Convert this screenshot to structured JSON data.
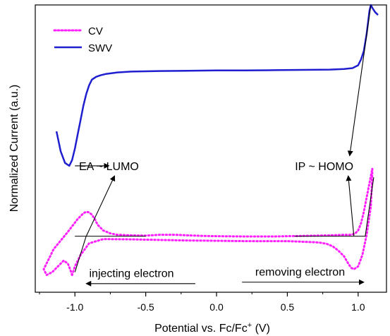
{
  "chart_data": {
    "type": "line",
    "xlabel": "Potential vs. Fc/Fc",
    "xlabel_sup": "+",
    "xlabel_unit": " (V)",
    "ylabel": "Normalized Current (a.u.)",
    "xlim": [
      -1.28,
      1.2
    ],
    "ylim": [
      0,
      1
    ],
    "x_ticks": [
      -1.0,
      -0.5,
      0.0,
      0.5,
      1.0
    ],
    "x_tick_labels": [
      "-1.0",
      "-0.5",
      "0.0",
      "0.5",
      "1.0"
    ],
    "y_ticks_shown": false,
    "legend": {
      "position": "top-left",
      "entries": [
        "CV",
        "SWV"
      ]
    },
    "colors": {
      "CV": "#ff22ff",
      "SWV": "#1f1fd0",
      "axis": "#000000"
    },
    "series": [
      {
        "name": "SWV",
        "style": "solid",
        "x": [
          -1.13,
          -1.1,
          -1.07,
          -1.04,
          -1.02,
          -1.0,
          -0.98,
          -0.96,
          -0.94,
          -0.92,
          -0.9,
          -0.88,
          -0.85,
          -0.82,
          -0.78,
          -0.7,
          -0.6,
          -0.4,
          -0.2,
          0.0,
          0.2,
          0.4,
          0.6,
          0.8,
          0.9,
          0.96,
          1.0,
          1.02,
          1.04,
          1.05,
          1.06,
          1.07,
          1.08,
          1.09,
          1.1,
          1.12,
          1.14
        ],
        "y": [
          0.56,
          0.49,
          0.45,
          0.44,
          0.46,
          0.5,
          0.55,
          0.6,
          0.65,
          0.69,
          0.72,
          0.74,
          0.75,
          0.755,
          0.76,
          0.765,
          0.768,
          0.77,
          0.771,
          0.772,
          0.772,
          0.773,
          0.774,
          0.775,
          0.777,
          0.78,
          0.79,
          0.81,
          0.84,
          0.87,
          0.9,
          0.94,
          0.98,
          1.0,
          0.99,
          0.975,
          0.965
        ]
      },
      {
        "name": "CV",
        "style": "dotted",
        "x": [
          -1.02,
          -1.03,
          -1.05,
          -1.08,
          -1.12,
          -1.16,
          -1.2,
          -1.22,
          -1.15,
          -1.05,
          -0.98,
          -0.94,
          -0.92,
          -0.9,
          -0.88,
          -0.86,
          -0.84,
          -0.8,
          -0.75,
          -0.7,
          -0.6,
          -0.5,
          -0.4,
          -0.3,
          -0.2,
          -0.1,
          0.0,
          0.2,
          0.4,
          0.6,
          0.8,
          0.9,
          0.95,
          0.98,
          1.0,
          1.02,
          1.04,
          1.06,
          1.08,
          1.1,
          1.1,
          1.09,
          1.06,
          1.03,
          1.0,
          0.97,
          0.95,
          0.93,
          0.9,
          0.86,
          0.82,
          0.78,
          0.74,
          0.7,
          0.6,
          0.5,
          0.4,
          0.2,
          0.0,
          -0.2,
          -0.4,
          -0.6,
          -0.8,
          -0.9,
          -0.96,
          -1.0,
          -1.02
        ],
        "y": [
          0.06,
          0.075,
          0.1,
          0.11,
          0.09,
          0.07,
          0.06,
          0.08,
          0.15,
          0.21,
          0.255,
          0.275,
          0.28,
          0.278,
          0.27,
          0.255,
          0.235,
          0.215,
          0.205,
          0.2,
          0.198,
          0.197,
          0.2,
          0.2,
          0.198,
          0.196,
          0.195,
          0.194,
          0.194,
          0.196,
          0.198,
          0.2,
          0.2,
          0.205,
          0.215,
          0.24,
          0.28,
          0.33,
          0.38,
          0.43,
          0.41,
          0.3,
          0.2,
          0.13,
          0.09,
          0.08,
          0.085,
          0.1,
          0.125,
          0.145,
          0.16,
          0.168,
          0.172,
          0.174,
          0.176,
          0.178,
          0.178,
          0.178,
          0.179,
          0.18,
          0.182,
          0.184,
          0.185,
          0.17,
          0.13,
          0.09,
          0.06
        ]
      }
    ],
    "tangent_lines": [
      {
        "x": [
          -1.0,
          -0.92
        ],
        "y": [
          0.07,
          0.196
        ]
      },
      {
        "x": [
          -1.0,
          -0.5
        ],
        "y": [
          0.195,
          0.195
        ]
      },
      {
        "x": [
          1.05,
          1.11
        ],
        "y": [
          0.195,
          0.4
        ]
      },
      {
        "x": [
          0.55,
          1.05
        ],
        "y": [
          0.195,
          0.195
        ]
      }
    ],
    "annotations": [
      {
        "text": "EA ~ LUMO",
        "x": -0.76,
        "y": 0.44
      },
      {
        "text": "IP ~ HOMO",
        "x": 0.76,
        "y": 0.44
      },
      {
        "text": "injecting electron",
        "x": -0.6,
        "y": 0.067
      },
      {
        "text": "removing electron",
        "x": 0.59,
        "y": 0.073
      }
    ],
    "annotation_arrows": [
      {
        "from": [
          -1.0,
          0.44
        ],
        "to": [
          -0.76,
          0.44
        ]
      },
      {
        "from": [
          -0.92,
          0.195
        ],
        "to": [
          -0.72,
          0.405
        ]
      },
      {
        "from": [
          1.09,
          1.0
        ],
        "to": [
          0.94,
          0.475
        ]
      },
      {
        "from": [
          0.97,
          0.195
        ],
        "to": [
          0.93,
          0.405
        ]
      },
      {
        "from": [
          -0.15,
          0.03
        ],
        "to": [
          -0.92,
          0.03
        ]
      },
      {
        "from": [
          0.18,
          0.035
        ],
        "to": [
          1.04,
          0.035
        ]
      }
    ]
  }
}
